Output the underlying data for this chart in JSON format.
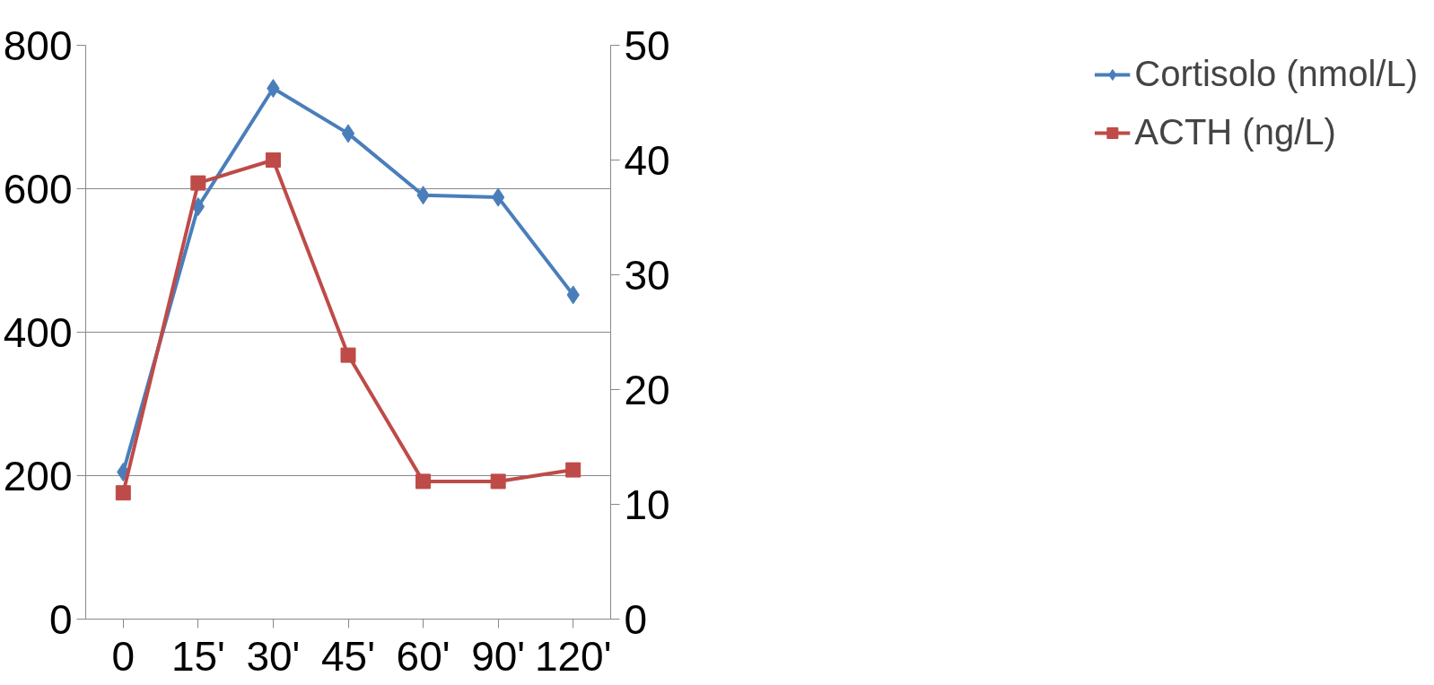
{
  "chart_data": {
    "type": "line",
    "categories": [
      "0",
      "15'",
      "30'",
      "45'",
      "60'",
      "90'",
      "120'"
    ],
    "series": [
      {
        "name": "Cortisolo (nmol/L)",
        "color": "#4a7ebb",
        "marker": "diamond",
        "values": [
          205,
          575,
          740,
          677,
          591,
          588,
          452
        ]
      },
      {
        "name": "ACTH (ng/L)",
        "color": "#be4b48",
        "marker": "square",
        "axis": "y2",
        "values": [
          11,
          38,
          40,
          23,
          12,
          12,
          13
        ]
      }
    ],
    "ylim": [
      0,
      800
    ],
    "yticks": [
      0,
      200,
      400,
      600,
      800
    ],
    "y2lim": [
      0,
      50
    ],
    "y2ticks": [
      0,
      10,
      20,
      30,
      40,
      50
    ],
    "grid": "y",
    "legend": "right"
  }
}
